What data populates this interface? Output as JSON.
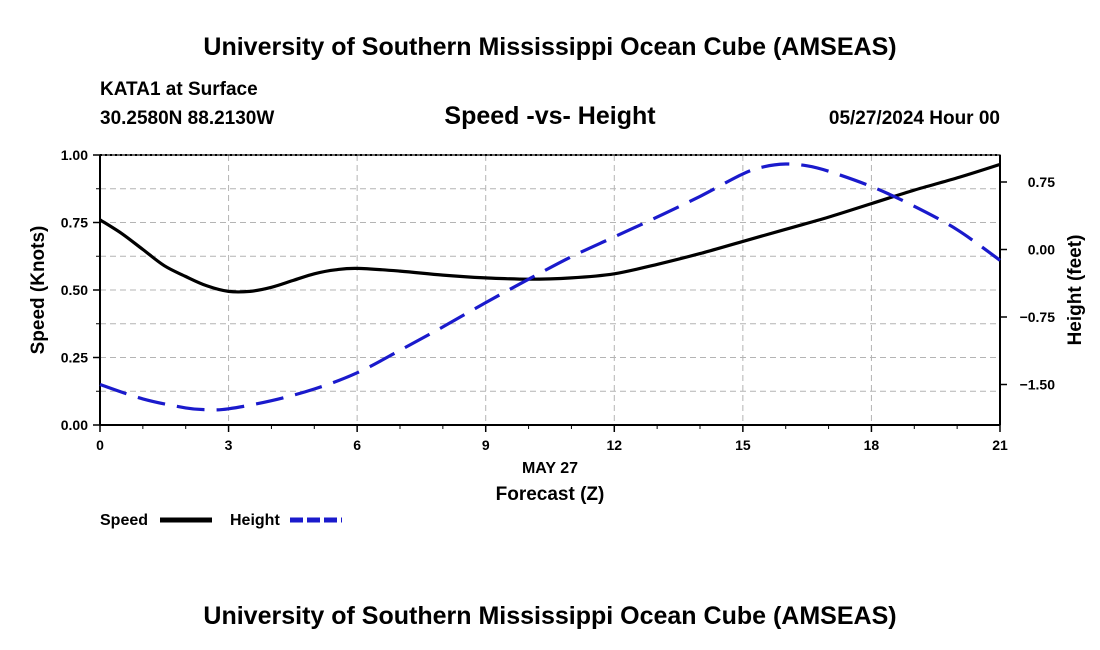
{
  "header": {
    "title_top": "University of Southern Mississippi Ocean Cube (AMSEAS)",
    "title_bottom": "University of Southern Mississippi Ocean Cube (AMSEAS)",
    "station": "KATA1 at Surface",
    "coords": "30.2580N  88.2130W",
    "date": "05/27/2024 Hour 00"
  },
  "colors": {
    "speed": "#000000",
    "height": "#1a1acc",
    "grid": "#b4b4b4"
  },
  "chart_data": {
    "type": "line",
    "title": "Speed -vs- Height",
    "xlabel": "Forecast (Z)",
    "xlabel_date": "MAY 27",
    "ylabel": "Speed (Knots)",
    "y2label": "Height (feet)",
    "xlim": [
      0,
      21
    ],
    "ylim": [
      0,
      1
    ],
    "y2lim": [
      -1.95,
      1.05
    ],
    "x_ticks": [
      "0",
      "3",
      "6",
      "9",
      "12",
      "15",
      "18",
      "21"
    ],
    "y_ticks": [
      "0.00",
      "0.25",
      "0.50",
      "0.75",
      "1.00"
    ],
    "y2_ticks": [
      "-1.50",
      "-0.75",
      "0.00",
      "0.75"
    ],
    "grid": true,
    "series": [
      {
        "name": "Speed",
        "axis": "left",
        "style": "solid",
        "x": [
          0,
          0.5,
          1,
          1.5,
          2,
          2.5,
          3,
          3.5,
          4,
          4.5,
          5,
          5.5,
          6,
          7,
          8,
          9,
          10,
          11,
          12,
          13,
          14,
          15,
          16,
          17,
          18,
          19,
          20,
          21
        ],
        "y": [
          0.76,
          0.71,
          0.65,
          0.59,
          0.55,
          0.515,
          0.495,
          0.495,
          0.51,
          0.535,
          0.56,
          0.575,
          0.58,
          0.57,
          0.555,
          0.545,
          0.54,
          0.545,
          0.56,
          0.595,
          0.635,
          0.68,
          0.725,
          0.77,
          0.82,
          0.87,
          0.915,
          0.965
        ]
      },
      {
        "name": "Height",
        "axis": "right",
        "style": "dashed",
        "x": [
          0,
          1,
          2,
          2.5,
          3,
          4,
          5,
          6,
          7,
          8,
          9,
          10,
          11,
          12,
          13,
          14,
          15,
          15.5,
          16,
          16.5,
          17,
          18,
          19,
          20,
          21
        ],
        "y": [
          -1.5,
          -1.66,
          -1.76,
          -1.78,
          -1.77,
          -1.68,
          -1.55,
          -1.37,
          -1.12,
          -0.86,
          -0.59,
          -0.33,
          -0.08,
          0.14,
          0.36,
          0.59,
          0.84,
          0.92,
          0.95,
          0.93,
          0.87,
          0.7,
          0.48,
          0.22,
          -0.12
        ]
      }
    ],
    "legend": [
      {
        "label": "Speed",
        "style": "solid"
      },
      {
        "label": "Height",
        "style": "dashed"
      }
    ]
  }
}
